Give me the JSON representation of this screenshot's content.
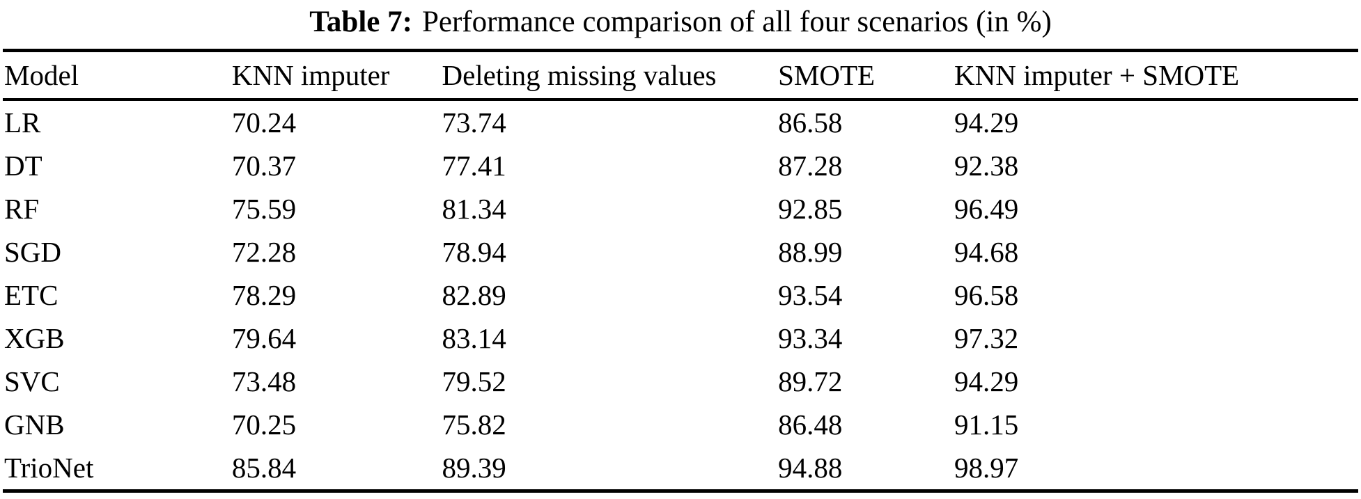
{
  "title": {
    "label": "Table 7:",
    "text": "Performance comparison of all four scenarios (in %)"
  },
  "table": {
    "headers": [
      "Model",
      "KNN imputer",
      "Deleting missing values",
      "SMOTE",
      "KNN imputer + SMOTE"
    ],
    "rows": [
      {
        "model": "LR",
        "values": [
          "70.24",
          "73.74",
          "86.58",
          "94.29"
        ]
      },
      {
        "model": "DT",
        "values": [
          "70.37",
          "77.41",
          "87.28",
          "92.38"
        ]
      },
      {
        "model": "RF",
        "values": [
          "75.59",
          "81.34",
          "92.85",
          "96.49"
        ]
      },
      {
        "model": "SGD",
        "values": [
          "72.28",
          "78.94",
          "88.99",
          "94.68"
        ]
      },
      {
        "model": "ETC",
        "values": [
          "78.29",
          "82.89",
          "93.54",
          "96.58"
        ]
      },
      {
        "model": "XGB",
        "values": [
          "79.64",
          "83.14",
          "93.34",
          "97.32"
        ]
      },
      {
        "model": "SVC",
        "values": [
          "73.48",
          "79.52",
          "89.72",
          "94.29"
        ]
      },
      {
        "model": "GNB",
        "values": [
          "70.25",
          "75.82",
          "86.48",
          "91.15"
        ]
      },
      {
        "model": "TrioNet",
        "values": [
          "85.84",
          "89.39",
          "94.88",
          "98.97"
        ]
      }
    ]
  },
  "colors": {
    "text": "#000000",
    "background": "#ffffff",
    "rule": "#000000"
  },
  "chart_data": {
    "type": "table",
    "title": "Table 7: Performance comparison of all four scenarios (in %)",
    "columns": [
      "Model",
      "KNN imputer",
      "Deleting missing values",
      "SMOTE",
      "KNN imputer + SMOTE"
    ],
    "rows": [
      [
        "LR",
        70.24,
        73.74,
        86.58,
        94.29
      ],
      [
        "DT",
        70.37,
        77.41,
        87.28,
        92.38
      ],
      [
        "RF",
        75.59,
        81.34,
        92.85,
        96.49
      ],
      [
        "SGD",
        72.28,
        78.94,
        88.99,
        94.68
      ],
      [
        "ETC",
        78.29,
        82.89,
        93.54,
        96.58
      ],
      [
        "XGB",
        79.64,
        83.14,
        93.34,
        97.32
      ],
      [
        "SVC",
        73.48,
        79.52,
        89.72,
        94.29
      ],
      [
        "GNB",
        70.25,
        75.82,
        86.48,
        91.15
      ],
      [
        "TrioNet",
        85.84,
        89.39,
        94.88,
        98.97
      ]
    ]
  }
}
